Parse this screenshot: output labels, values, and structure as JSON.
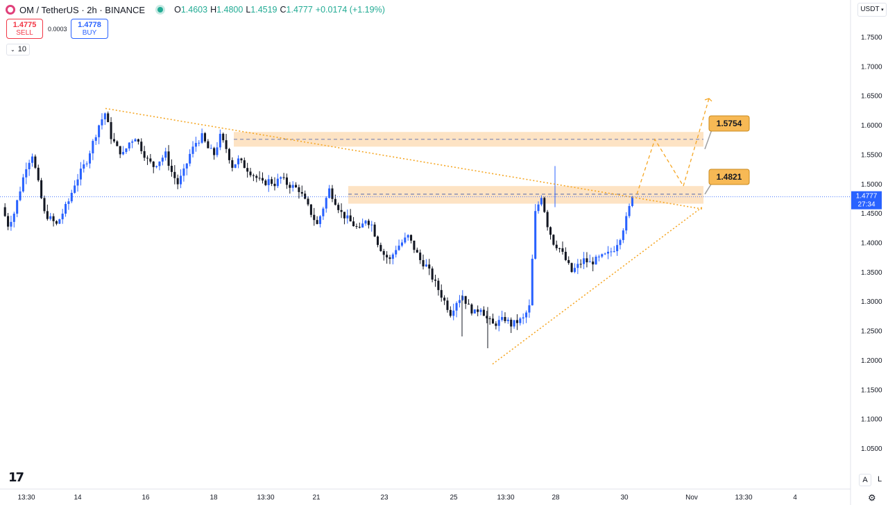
{
  "header": {
    "symbol": "OM / TetherUS · 2h · BINANCE",
    "o_label": "O",
    "o": "1.4603",
    "h_label": "H",
    "h": "1.4800",
    "l_label": "L",
    "l": "1.4519",
    "c_label": "C",
    "c": "1.4777",
    "change": "+0.0174 (+1.19%)"
  },
  "trade": {
    "sell_price": "1.4775",
    "sell_label": "SELL",
    "spread": "0.0003",
    "buy_price": "1.4778",
    "buy_label": "BUY"
  },
  "volume_toggle": "10",
  "currency": "USDT",
  "chart_data": {
    "type": "candlestick",
    "pair": "OM / TetherUS",
    "timeframe": "2h",
    "exchange": "BINANCE",
    "ylim": [
      1.0,
      1.78
    ],
    "y_ticks": [
      "1.7500",
      "1.7000",
      "1.6500",
      "1.6000",
      "1.5500",
      "1.5000",
      "1.4500",
      "1.4000",
      "1.3500",
      "1.3000",
      "1.2500",
      "1.2000",
      "1.1500",
      "1.1000",
      "1.0500"
    ],
    "x_ticks": [
      "13:30",
      "14",
      "16",
      "18",
      "13:30",
      "21",
      "23",
      "25",
      "13:30",
      "28",
      "30",
      "Nov",
      "13:30",
      "4"
    ],
    "last_price": "1.4777",
    "countdown": "27:34",
    "annotations": [
      {
        "label": "1.5754",
        "zone": [
          1.563,
          1.588
        ]
      },
      {
        "label": "1.4821",
        "zone": [
          1.466,
          1.496
        ]
      }
    ],
    "trendlines": [
      {
        "name": "descending",
        "from": [
          0.0,
          1.628
        ],
        "to": [
          1.0,
          1.457
        ]
      },
      {
        "name": "ascending",
        "from": [
          0.0,
          1.193
        ],
        "to": [
          1.0,
          1.46
        ]
      }
    ],
    "projection": [
      1.4821,
      1.5754,
      1.496,
      1.645
    ],
    "price_path": [
      1.46,
      1.43,
      1.45,
      1.49,
      1.53,
      1.55,
      1.5,
      1.45,
      1.44,
      1.43,
      1.45,
      1.47,
      1.5,
      1.52,
      1.54,
      1.57,
      1.6,
      1.62,
      1.58,
      1.56,
      1.55,
      1.57,
      1.58,
      1.56,
      1.54,
      1.53,
      1.54,
      1.55,
      1.52,
      1.5,
      1.52,
      1.55,
      1.57,
      1.58,
      1.56,
      1.55,
      1.58,
      1.56,
      1.53,
      1.54,
      1.53,
      1.52,
      1.51,
      1.5,
      1.505,
      1.5,
      1.51,
      1.5,
      1.495,
      1.49,
      1.47,
      1.45,
      1.43,
      1.46,
      1.49,
      1.47,
      1.45,
      1.44,
      1.43,
      1.42,
      1.44,
      1.43,
      1.4,
      1.38,
      1.37,
      1.39,
      1.4,
      1.41,
      1.39,
      1.37,
      1.36,
      1.34,
      1.32,
      1.3,
      1.28,
      1.3,
      1.31,
      1.29,
      1.28,
      1.29,
      1.27,
      1.26,
      1.265,
      1.27,
      1.26,
      1.265,
      1.27,
      1.29,
      1.45,
      1.48,
      1.43,
      1.4,
      1.39,
      1.37,
      1.35,
      1.36,
      1.37,
      1.365,
      1.37,
      1.375,
      1.38,
      1.39,
      1.41,
      1.44,
      1.4777
    ]
  }
}
